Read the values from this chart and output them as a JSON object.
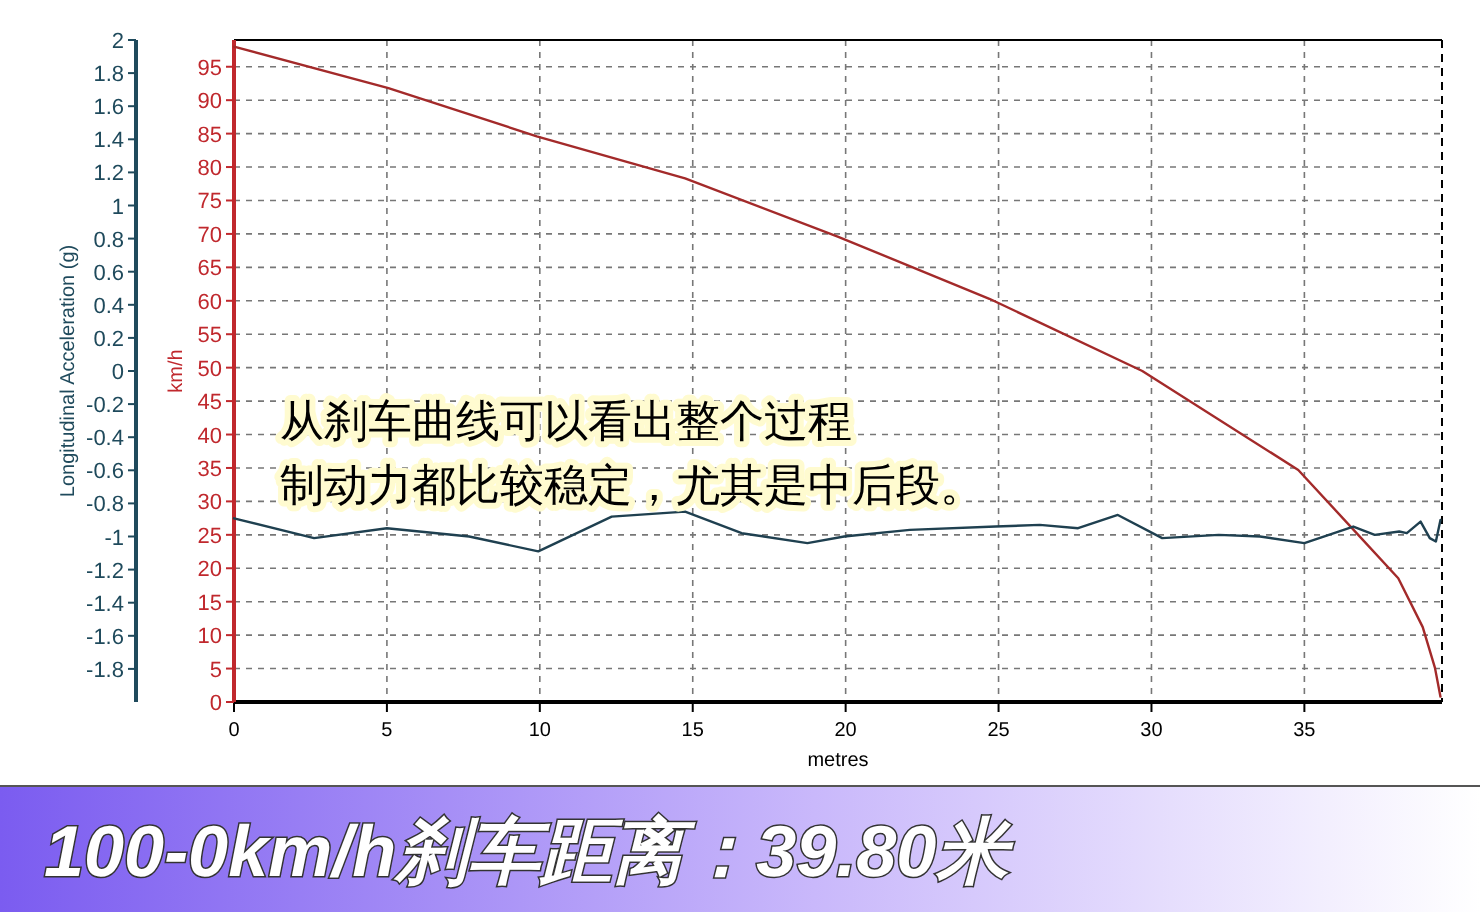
{
  "chart_data": {
    "type": "line",
    "title": "100-0km/h刹车距离：39.80米",
    "xlabel": "metres",
    "ylabel": "Longitudinal Acceleration (g)",
    "y2label": "km/h",
    "annotations": [
      "从刹车曲线可以看出整个过程",
      "制动力都比较稳定，尤其是中后段。"
    ],
    "xlim": [
      0,
      39.5
    ],
    "xticks": [
      0,
      5,
      10,
      15,
      20,
      25,
      30,
      35
    ],
    "ylim": [
      -2,
      2
    ],
    "yticks": [
      2,
      1.8,
      1.6,
      1.4,
      1.2,
      1,
      0.8,
      0.6,
      0.4,
      0.2,
      0,
      -0.2,
      -0.4,
      -0.6,
      -0.8,
      -1,
      -1.2,
      -1.4,
      -1.6,
      -1.8
    ],
    "y2lim": [
      0,
      99
    ],
    "y2ticks": [
      0,
      5,
      10,
      15,
      20,
      25,
      30,
      35,
      40,
      45,
      50,
      55,
      60,
      65,
      70,
      75,
      80,
      85,
      90,
      95
    ],
    "grid": true,
    "series": [
      {
        "axis": "y2",
        "color": "#a32a2a",
        "x": [
          0,
          5.05,
          9.9,
          14.75,
          19.74,
          24.7,
          29.7,
          34.8,
          36.7,
          38.07,
          38.87,
          39.27,
          39.45
        ],
        "values": [
          98,
          91.8,
          84.6,
          78.3,
          69.6,
          60.3,
          49.5,
          34.7,
          25.3,
          18.5,
          11.2,
          5.1,
          0.8
        ]
      },
      {
        "axis": "y",
        "color": "#1f4050",
        "x": [
          0,
          2.62,
          5,
          7.69,
          9.95,
          12.35,
          14.75,
          16.6,
          18.75,
          19.95,
          22.1,
          24.9,
          26.35,
          27.6,
          28.9,
          30.35,
          32.2,
          33.55,
          35,
          36.6,
          37.3,
          38.1,
          38.35,
          38.8,
          39.1,
          39.3,
          39.45
        ],
        "values": [
          -0.89,
          -1.01,
          -0.95,
          -1,
          -1.09,
          -0.88,
          -0.85,
          -0.98,
          -1.04,
          -1,
          -0.96,
          -0.94,
          -0.93,
          -0.95,
          -0.87,
          -1.01,
          -0.99,
          -1,
          -1.04,
          -0.94,
          -0.99,
          -0.97,
          -0.98,
          -0.91,
          -1.01,
          -1.03,
          -0.9
        ]
      }
    ]
  }
}
